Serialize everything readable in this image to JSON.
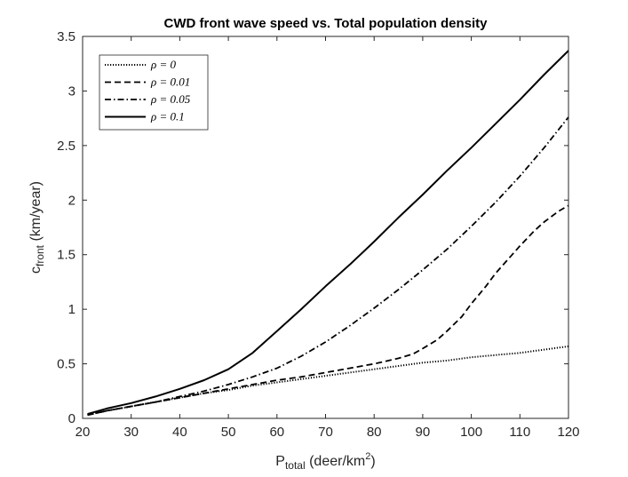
{
  "chart_data": {
    "type": "line",
    "title": "CWD front wave speed vs. Total population density",
    "xlabel": {
      "main": "P",
      "sub": "total",
      "unit_pre": " (deer/km",
      "unit_sup": "2",
      "unit_post": ")"
    },
    "ylabel": {
      "main": "c",
      "sub": "front",
      "unit": " (km/year)"
    },
    "xlim": [
      20,
      120
    ],
    "ylim": [
      0,
      3.5
    ],
    "xticks": [
      20,
      30,
      40,
      50,
      60,
      70,
      80,
      90,
      100,
      110,
      120
    ],
    "yticks": [
      0,
      0.5,
      1,
      1.5,
      2,
      2.5,
      3,
      3.5
    ],
    "ytick_labels": [
      "0",
      "0.5",
      "1",
      "1.5",
      "2",
      "2.5",
      "3",
      "3.5"
    ],
    "grid": false,
    "legend_position": "top-left",
    "series": [
      {
        "name": "ρ = 0",
        "style": "dotted",
        "x": [
          21,
          25,
          30,
          35,
          40,
          45,
          50,
          55,
          60,
          65,
          70,
          75,
          80,
          85,
          90,
          95,
          100,
          105,
          110,
          115,
          120
        ],
        "y": [
          0.03,
          0.07,
          0.11,
          0.15,
          0.19,
          0.23,
          0.26,
          0.3,
          0.33,
          0.36,
          0.39,
          0.42,
          0.45,
          0.48,
          0.51,
          0.53,
          0.56,
          0.58,
          0.6,
          0.63,
          0.66
        ]
      },
      {
        "name": "ρ = 0.01",
        "style": "dashed",
        "x": [
          21,
          25,
          30,
          35,
          40,
          45,
          50,
          55,
          60,
          65,
          70,
          75,
          80,
          85,
          88,
          90,
          93,
          95,
          98,
          100,
          103,
          105,
          108,
          110,
          113,
          115,
          118,
          120
        ],
        "y": [
          0.03,
          0.07,
          0.11,
          0.15,
          0.19,
          0.23,
          0.27,
          0.31,
          0.35,
          0.38,
          0.42,
          0.46,
          0.5,
          0.55,
          0.59,
          0.64,
          0.72,
          0.8,
          0.93,
          1.05,
          1.21,
          1.33,
          1.48,
          1.58,
          1.72,
          1.8,
          1.9,
          1.95
        ]
      },
      {
        "name": "ρ = 0.05",
        "style": "dashdot",
        "x": [
          21,
          25,
          30,
          35,
          40,
          45,
          50,
          55,
          60,
          65,
          70,
          75,
          80,
          85,
          90,
          95,
          100,
          105,
          110,
          115,
          120
        ],
        "y": [
          0.03,
          0.07,
          0.11,
          0.15,
          0.2,
          0.25,
          0.31,
          0.38,
          0.46,
          0.57,
          0.7,
          0.85,
          1.01,
          1.18,
          1.36,
          1.55,
          1.76,
          1.98,
          2.22,
          2.48,
          2.76
        ]
      },
      {
        "name": "ρ = 0.1",
        "style": "solid",
        "x": [
          21,
          25,
          30,
          35,
          40,
          45,
          50,
          55,
          60,
          65,
          70,
          75,
          80,
          85,
          90,
          95,
          100,
          105,
          110,
          115,
          120
        ],
        "y": [
          0.04,
          0.09,
          0.14,
          0.2,
          0.27,
          0.35,
          0.45,
          0.6,
          0.8,
          1.0,
          1.21,
          1.41,
          1.62,
          1.84,
          2.05,
          2.27,
          2.48,
          2.7,
          2.92,
          3.15,
          3.37
        ]
      }
    ]
  }
}
